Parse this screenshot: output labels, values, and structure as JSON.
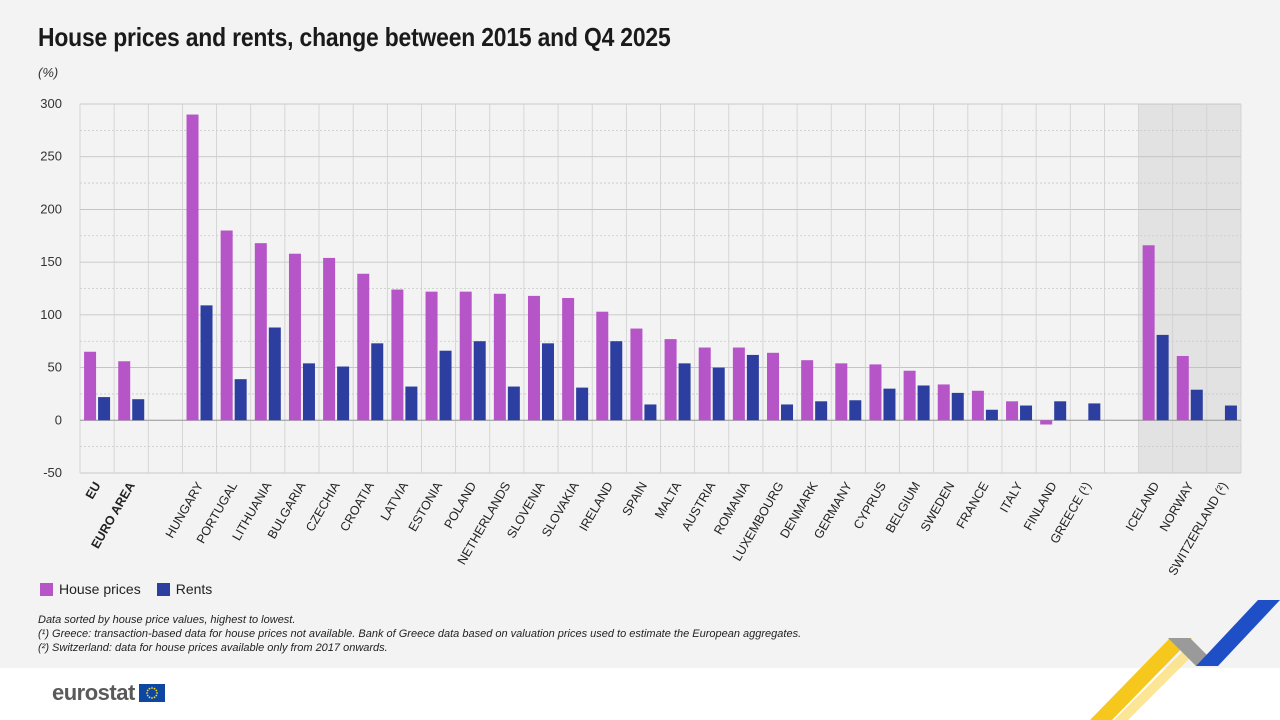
{
  "title": "House prices and rents, change between 2015 and Q4 2025",
  "unit": "(%)",
  "legend": {
    "house_prices": "House prices",
    "rents": "Rents"
  },
  "colors": {
    "house_prices": "#b655c8",
    "rents": "#2c3ea0",
    "shaded_group": "#e2e2e2"
  },
  "notes": [
    "Data sorted by house price values, highest to lowest.",
    "(¹) Greece: transaction-based data for house prices not available. Bank of Greece data based on valuation prices used to estimate the European aggregates.",
    "(²) Switzerland: data for house prices available only from 2017 onwards."
  ],
  "logo": {
    "text": "eurostat",
    "icon": "eu-flag-icon"
  },
  "chart_data": {
    "type": "bar",
    "ylim": [
      -50,
      300
    ],
    "yticks": [
      -50,
      0,
      50,
      100,
      150,
      200,
      250,
      300
    ],
    "grid": true,
    "legend_position": "bottom-left",
    "categories": [
      {
        "label": "EU",
        "bold": true
      },
      {
        "label": "EURO AREA",
        "bold": true
      },
      {
        "label": "HUNGARY"
      },
      {
        "label": "PORTUGAL"
      },
      {
        "label": "LITHUANIA"
      },
      {
        "label": "BULGARIA"
      },
      {
        "label": "CZECHIA"
      },
      {
        "label": "CROATIA"
      },
      {
        "label": "LATVIA"
      },
      {
        "label": "ESTONIA"
      },
      {
        "label": "POLAND"
      },
      {
        "label": "NETHERLANDS"
      },
      {
        "label": "SLOVENIA"
      },
      {
        "label": "SLOVAKIA"
      },
      {
        "label": "IRELAND"
      },
      {
        "label": "SPAIN"
      },
      {
        "label": "MALTA"
      },
      {
        "label": "AUSTRIA"
      },
      {
        "label": "ROMANIA"
      },
      {
        "label": "LUXEMBOURG"
      },
      {
        "label": "DENMARK"
      },
      {
        "label": "GERMANY"
      },
      {
        "label": "CYPRUS"
      },
      {
        "label": "BELGIUM"
      },
      {
        "label": "SWEDEN"
      },
      {
        "label": "FRANCE"
      },
      {
        "label": "ITALY"
      },
      {
        "label": "FINLAND"
      },
      {
        "label": "GREECE (¹)"
      },
      {
        "label": "ICELAND",
        "shaded": true
      },
      {
        "label": "NORWAY",
        "shaded": true
      },
      {
        "label": "SWITZERLAND (²)",
        "shaded": true
      }
    ],
    "series": [
      {
        "name": "House prices",
        "values": [
          65,
          56,
          290,
          180,
          168,
          158,
          154,
          139,
          124,
          122,
          122,
          120,
          118,
          116,
          103,
          87,
          77,
          69,
          69,
          64,
          57,
          54,
          53,
          47,
          34,
          28,
          18,
          -4,
          null,
          166,
          61,
          null
        ]
      },
      {
        "name": "Rents",
        "values": [
          22,
          20,
          109,
          39,
          88,
          54,
          51,
          73,
          32,
          66,
          75,
          32,
          73,
          31,
          75,
          15,
          54,
          50,
          62,
          15,
          18,
          19,
          30,
          33,
          26,
          10,
          14,
          18,
          16,
          81,
          29,
          14
        ]
      }
    ]
  }
}
